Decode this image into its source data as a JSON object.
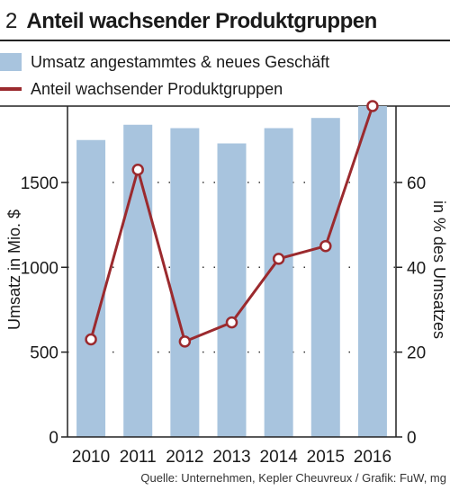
{
  "header": {
    "number": "2",
    "title": "Anteil wachsender Produktgruppen"
  },
  "legend": {
    "bar_label": "Umsatz angestammtes & neues Geschäft",
    "line_label": "Anteil wachsender Produktgruppen"
  },
  "source": "Quelle: Unternehmen, Kepler Cheuvreux / Grafik: FuW, mg",
  "colors": {
    "bar": "#a8c4de",
    "line": "#9b2a2e"
  },
  "chart_data": {
    "type": "bar",
    "title": "Anteil wachsender Produktgruppen",
    "categories": [
      "2010",
      "2011",
      "2012",
      "2013",
      "2014",
      "2015",
      "2016"
    ],
    "series": [
      {
        "name": "Umsatz angestammtes & neues Geschäft",
        "type": "bar",
        "axis": "left",
        "values": [
          1750,
          1840,
          1820,
          1730,
          1820,
          1880,
          1950
        ]
      },
      {
        "name": "Anteil wachsender Produktgruppen",
        "type": "line",
        "axis": "right",
        "values": [
          23,
          63,
          22.5,
          27,
          42,
          45,
          78
        ]
      }
    ],
    "ylabel": "Umsatz in Mio. $",
    "y2label": "in % des Umsatzes",
    "ylim": [
      0,
      1950
    ],
    "y2lim": [
      0,
      78
    ],
    "yticks": [
      "0",
      "500",
      "1000",
      "1500"
    ],
    "y2ticks": [
      "0",
      "20",
      "40",
      "60"
    ],
    "grid": "dotted horizontal",
    "legend": "top"
  }
}
